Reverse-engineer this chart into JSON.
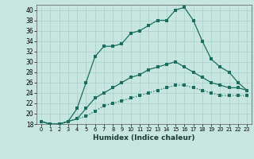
{
  "xlabel": "Humidex (Indice chaleur)",
  "bg_color": "#c8e6e0",
  "grid_color": "#a8cec8",
  "line_color": "#1a6e60",
  "xlim": [
    -0.5,
    23.5
  ],
  "ylim": [
    18,
    41
  ],
  "xticks": [
    0,
    1,
    2,
    3,
    4,
    5,
    6,
    7,
    8,
    9,
    10,
    11,
    12,
    13,
    14,
    15,
    16,
    17,
    18,
    19,
    20,
    21,
    22,
    23
  ],
  "yticks": [
    18,
    20,
    22,
    24,
    26,
    28,
    30,
    32,
    34,
    36,
    38,
    40
  ],
  "line1_x": [
    0,
    1,
    2,
    3,
    4,
    5,
    6,
    7,
    8,
    9,
    10,
    11,
    12,
    13,
    14,
    15,
    16,
    17,
    18,
    19,
    20,
    21,
    22,
    23
  ],
  "line1_y": [
    18.5,
    18,
    18,
    18.5,
    21,
    26,
    31,
    33,
    33,
    33.5,
    35.5,
    36,
    37,
    38,
    38,
    40,
    40.5,
    38,
    34,
    30.5,
    29,
    28,
    26,
    24.5
  ],
  "line2_x": [
    0,
    1,
    2,
    3,
    4,
    5,
    6,
    7,
    8,
    9,
    10,
    11,
    12,
    13,
    14,
    15,
    16,
    17,
    18,
    19,
    20,
    21,
    22,
    23
  ],
  "line2_y": [
    18.5,
    18,
    18,
    18.5,
    19,
    21,
    23,
    24,
    25,
    26,
    27,
    27.5,
    28.5,
    29,
    29.5,
    30,
    29,
    28,
    27,
    26,
    25.5,
    25,
    25,
    24.5
  ],
  "line3_x": [
    0,
    1,
    2,
    3,
    4,
    5,
    6,
    7,
    8,
    9,
    10,
    11,
    12,
    13,
    14,
    15,
    16,
    17,
    18,
    19,
    20,
    21,
    22,
    23
  ],
  "line3_y": [
    18.5,
    18,
    18,
    18.5,
    19,
    19.5,
    20.5,
    21.5,
    22,
    22.5,
    23,
    23.5,
    24,
    24.5,
    25,
    25.5,
    25.5,
    25,
    24.5,
    24,
    23.5,
    23.5,
    23.5,
    23.5
  ],
  "tick_fontsize": 5.5,
  "xlabel_fontsize": 6.5,
  "marker_size": 2.5,
  "linewidth": 0.9
}
